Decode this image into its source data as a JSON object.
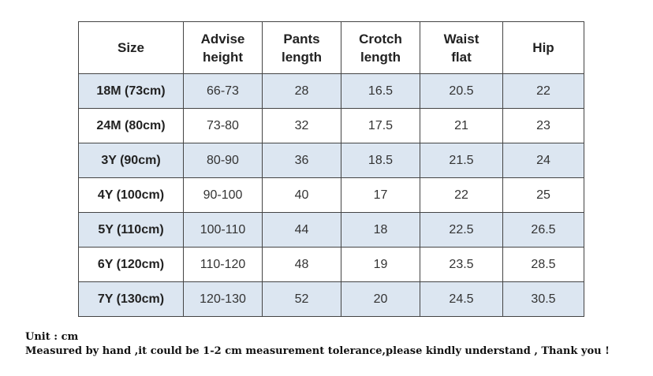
{
  "table": {
    "header": [
      "Size",
      "Advise\nheight",
      "Pants\nlength",
      "Crotch\nlength",
      "Waist\nflat",
      "Hip"
    ],
    "rows": [
      [
        "18M (73cm)",
        "66-73",
        28,
        16.5,
        20.5,
        22
      ],
      [
        "24M (80cm)",
        "73-80",
        32,
        17.5,
        21,
        23
      ],
      [
        "3Y (90cm)",
        "80-90",
        36,
        18.5,
        21.5,
        24
      ],
      [
        "4Y (100cm)",
        "90-100",
        40,
        17,
        22,
        25
      ],
      [
        "5Y (110cm)",
        "100-110",
        44,
        18,
        22.5,
        26.5
      ],
      [
        "6Y (120cm)",
        "110-120",
        48,
        19,
        23.5,
        28.5
      ],
      [
        "7Y (130cm)",
        "120-130",
        52,
        20,
        24.5,
        30.5
      ]
    ]
  },
  "footer": {
    "unit": "Unit : cm",
    "note": "Measured by hand ,it could be 1-2 cm measurement tolerance,please kindly understand , Thank you !"
  }
}
